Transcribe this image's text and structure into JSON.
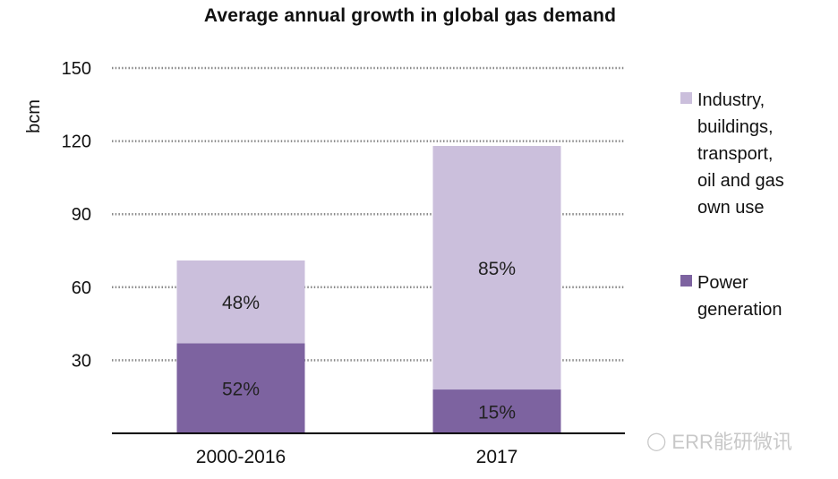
{
  "chart_data": {
    "type": "bar",
    "stacked": true,
    "title": "Average annual growth in global gas demand",
    "ylabel": "bcm",
    "xlabel": "",
    "ylim": [
      0,
      150
    ],
    "yticks": [
      30,
      60,
      90,
      120,
      150
    ],
    "grid": true,
    "legend_position": "right",
    "categories": [
      "2000-2016",
      "2017"
    ],
    "series": [
      {
        "name": "Power generation",
        "values": [
          37,
          18
        ],
        "labels": [
          "52%",
          "15%"
        ],
        "color": "#7d63a0"
      },
      {
        "name": "Industry, buildings, transport, oil and gas own use",
        "values": [
          34,
          100
        ],
        "labels": [
          "48%",
          "85%"
        ],
        "color": "#cbbfdc"
      }
    ]
  },
  "legend": [
    {
      "label": "Industry,\nbuildings,\ntransport,\noil and gas\nown use",
      "color": "#cbbfdc"
    },
    {
      "label": "Power\ngeneration",
      "color": "#7d63a0"
    }
  ],
  "watermark": "ERR能研微讯"
}
